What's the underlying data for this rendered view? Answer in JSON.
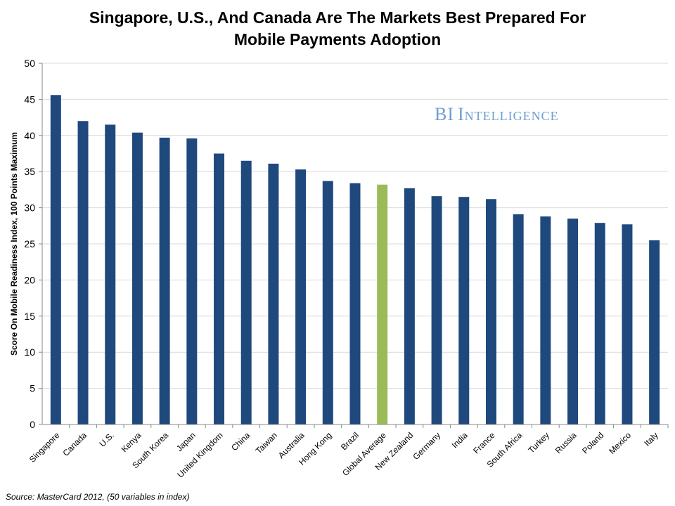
{
  "title_line1": "Singapore, U.S., And Canada Are The Markets Best Prepared For",
  "title_line2": "Mobile Payments Adoption",
  "brand": {
    "word1": "BI",
    "word2": "Intelligence"
  },
  "source": "Source: MasterCard 2012, (50 variables in index)",
  "colors": {
    "bar": "#1f497d",
    "highlight": "#9bbb59",
    "brand": "#6d9ed0",
    "grid": "#d9d9d9"
  },
  "chart_data": {
    "type": "bar",
    "title": "Singapore, U.S., And Canada Are The Markets Best Prepared For Mobile Payments Adoption",
    "xlabel": "",
    "ylabel": "Score On Mobile Readiness Index, 100 Points Maximum",
    "ylim": [
      0,
      50
    ],
    "yticks": [
      0,
      5,
      10,
      15,
      20,
      25,
      30,
      35,
      40,
      45,
      50
    ],
    "grid": true,
    "categories": [
      "Singapore",
      "Canada",
      "U.S.",
      "Kenya",
      "South Korea",
      "Japan",
      "United Kingdom",
      "China",
      "Taiwan",
      "Australia",
      "Hong Kong",
      "Brazil",
      "Global Average",
      "New Zealand",
      "Germany",
      "India",
      "France",
      "South Africa",
      "Turkey",
      "Russia",
      "Poland",
      "Mexico",
      "Italy"
    ],
    "values": [
      45.6,
      42.0,
      41.5,
      40.4,
      39.7,
      39.6,
      37.5,
      36.5,
      36.1,
      35.3,
      33.7,
      33.4,
      33.2,
      32.7,
      31.6,
      31.5,
      31.2,
      29.1,
      28.8,
      28.5,
      27.9,
      27.7,
      25.5
    ],
    "highlight": "Global Average"
  }
}
